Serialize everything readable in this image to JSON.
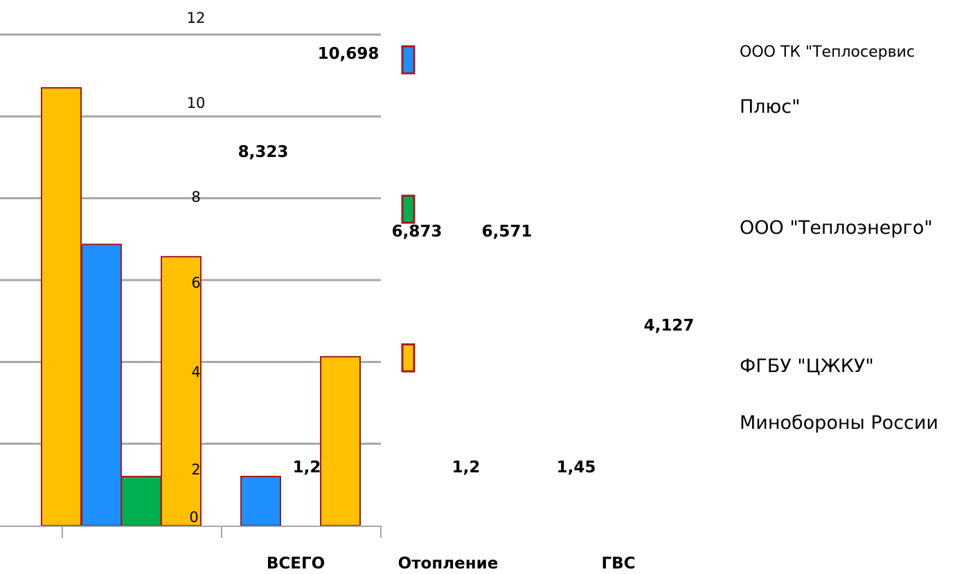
{
  "chart_data": {
    "type": "bar",
    "categories": [
      "ВСЕГО",
      "Отопление",
      "ГВС"
    ],
    "series": [
      {
        "name": "ООО ТК \"Теплосервис Плюс\"",
        "color": "#1e90ff",
        "values": [
          null,
          6.873,
          1.2
        ]
      },
      {
        "name": "ООО \"Теплоэнерго\"",
        "color": "#00b050",
        "values": [
          null,
          1.2,
          null
        ]
      },
      {
        "name": "ФГБУ \"ЦЖКУ\" Минобороны России",
        "color": "#ffc000",
        "values": [
          10.698,
          6.571,
          4.127
        ]
      }
    ],
    "data_labels": [
      "10,698",
      "8,323",
      "6,873",
      "6,571",
      "4,127",
      "1,2",
      "1,2",
      "1,45"
    ],
    "y_ticks": [
      "0",
      "2",
      "4",
      "6",
      "8",
      "10",
      "12"
    ],
    "ylim": [
      0,
      12
    ],
    "grid": true,
    "legend_position": "right"
  },
  "legend": {
    "line1_part1": "ООО ТК \"Теплосервис",
    "line1_part2": "Плюс\"",
    "line2": "ООО \"Теплоэнерго\"",
    "line3_part1": "ФГБУ \"ЦЖКУ\"",
    "line3_part2": "Минобороны России"
  },
  "colors": {
    "blue": "#1e90ff",
    "green": "#00b050",
    "orange": "#ffc000",
    "border": "#a01c1c",
    "grid": "#a6a6a6"
  }
}
